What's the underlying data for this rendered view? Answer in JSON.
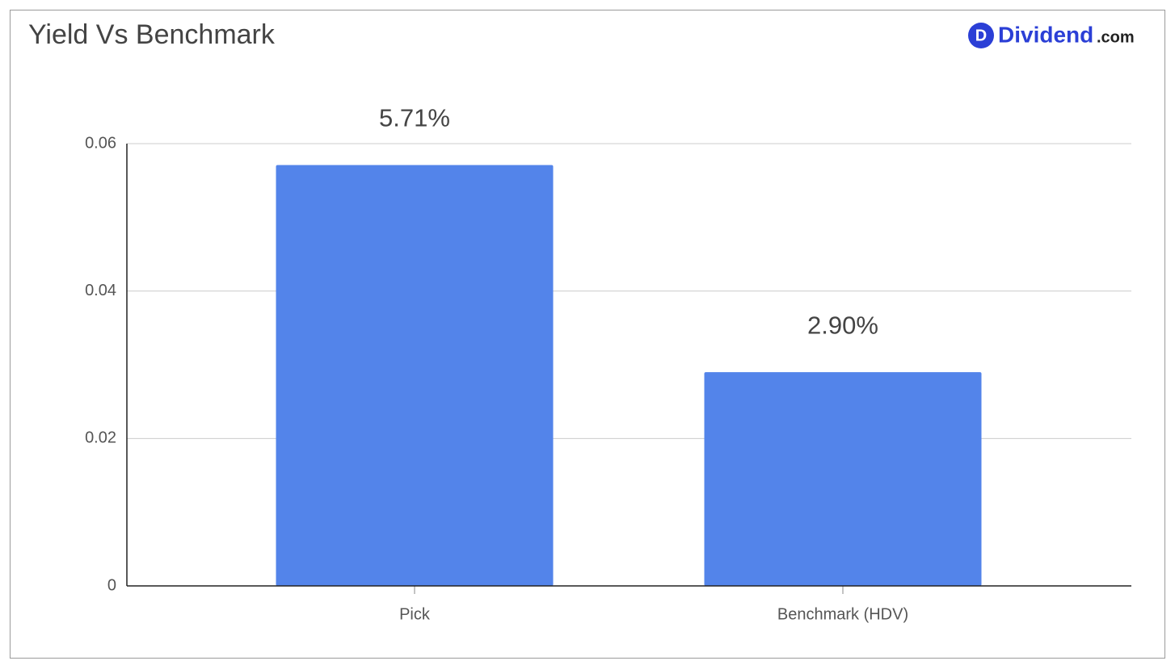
{
  "logo": {
    "icon": "D",
    "name": "Dividend",
    "domain": ".com"
  },
  "chart_data": {
    "type": "bar",
    "title": "Yield Vs Benchmark",
    "categories": [
      "Pick",
      "Benchmark (HDV)"
    ],
    "values": [
      0.0571,
      0.029
    ],
    "value_labels": [
      "5.71%",
      "2.90%"
    ],
    "color": "#5384ea",
    "ylim": [
      0,
      0.06
    ],
    "yticks": [
      0,
      0.02,
      0.04,
      0.06
    ],
    "grid": true
  }
}
